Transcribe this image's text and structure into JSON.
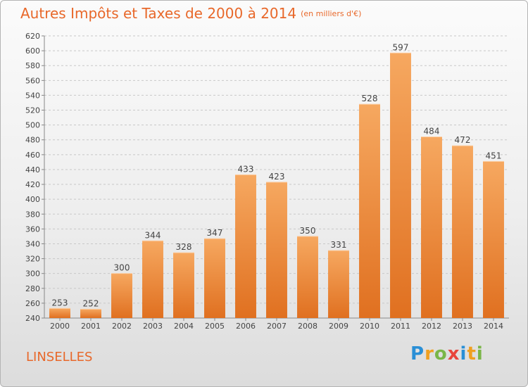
{
  "header": {
    "title": "Autres Impôts et Taxes de 2000 à 2014",
    "unit": "(en milliers d'€)"
  },
  "footer": {
    "city": "LINSELLES",
    "logo_letters": [
      "P",
      "r",
      "o",
      "x",
      "i",
      "t",
      "i"
    ],
    "logo_colors": [
      "#2a8fd6",
      "#f0a020",
      "#7ab648",
      "#e8453c",
      "#2a8fd6",
      "#f0a020",
      "#7ab648"
    ]
  },
  "colors": {
    "accent": "#e8682a",
    "bar_light": "#f6a860",
    "bar_dark": "#e07020"
  },
  "chart_data": {
    "type": "bar",
    "categories": [
      "2000",
      "2001",
      "2002",
      "2003",
      "2004",
      "2005",
      "2006",
      "2007",
      "2008",
      "2009",
      "2010",
      "2011",
      "2012",
      "2013",
      "2014"
    ],
    "values": [
      253,
      252,
      300,
      344,
      328,
      347,
      433,
      423,
      350,
      331,
      528,
      597,
      484,
      472,
      451
    ],
    "ylim": [
      240,
      620
    ],
    "yticks": [
      240,
      260,
      280,
      300,
      320,
      340,
      360,
      380,
      400,
      420,
      440,
      460,
      480,
      500,
      520,
      540,
      560,
      580,
      600,
      620
    ],
    "grid": true
  }
}
